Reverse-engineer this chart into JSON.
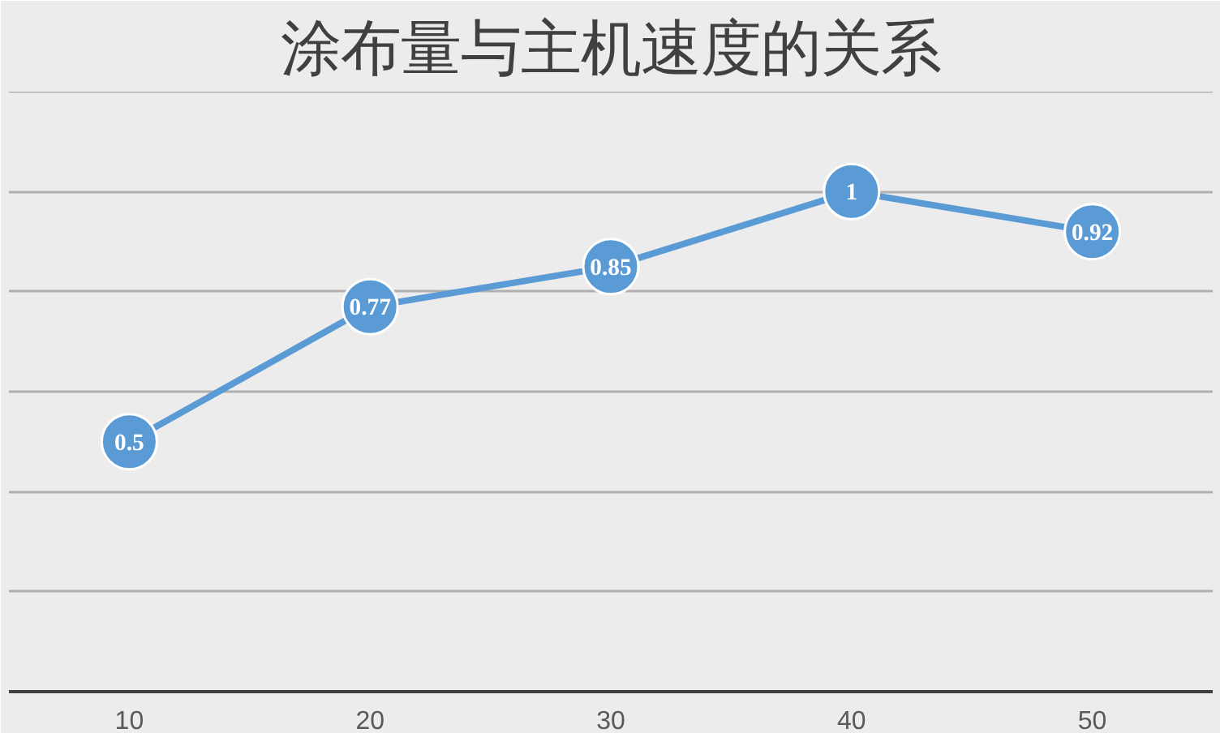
{
  "chart_data": {
    "type": "line",
    "title": "涂布量与主机速度的关系",
    "categories": [
      "10",
      "20",
      "30",
      "40",
      "50"
    ],
    "series": [
      {
        "color": "#5b9bd5",
        "values": [
          0.5,
          0.77,
          0.85,
          1,
          0.92
        ]
      }
    ],
    "ylim": [
      0,
      1.2
    ],
    "yticks": [
      0,
      0.2,
      0.4,
      0.6,
      0.8,
      1,
      1.2
    ],
    "grid": "y",
    "tick_labels": "x",
    "marker": "circle",
    "line_style": "solid",
    "data_labels": true
  }
}
